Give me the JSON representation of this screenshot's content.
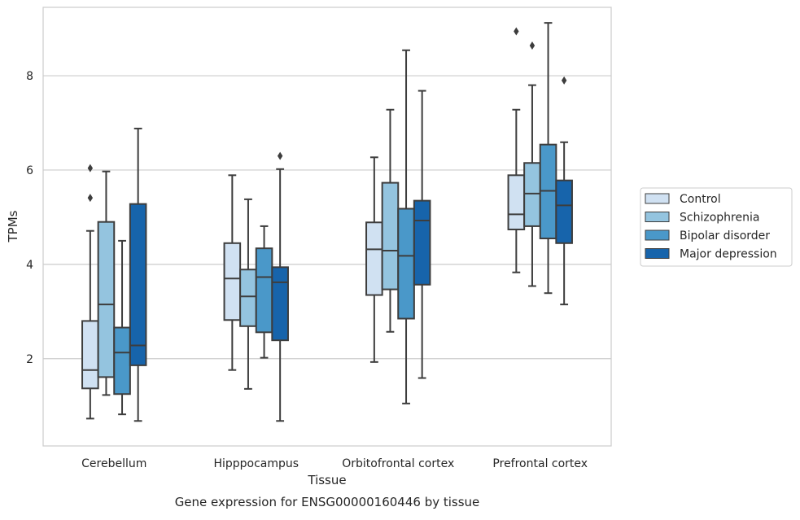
{
  "chart_data": {
    "type": "boxplot",
    "caption": "Gene expression for ENSG00000160446 by tissue",
    "xlabel": "Tissue",
    "ylabel": "TPMs",
    "ylim": [
      0.15,
      9.45
    ],
    "yticks": [
      2,
      4,
      6,
      8
    ],
    "grid": true,
    "legend_position": "right",
    "categories": [
      "Cerebellum",
      "Hipppocampus",
      "Orbitofrontal cortex",
      "Prefrontal cortex"
    ],
    "series": [
      {
        "name": "Control",
        "color": "#d0e1f2",
        "boxes": [
          {
            "whislo": 0.73,
            "q1": 1.37,
            "med": 1.76,
            "q3": 2.8,
            "whishi": 4.71,
            "fliers": [
              5.41,
              6.04
            ]
          },
          {
            "whislo": 1.76,
            "q1": 2.82,
            "med": 3.7,
            "q3": 4.45,
            "whishi": 5.89,
            "fliers": []
          },
          {
            "whislo": 1.93,
            "q1": 3.35,
            "med": 4.32,
            "q3": 4.89,
            "whishi": 6.27,
            "fliers": []
          },
          {
            "whislo": 3.83,
            "q1": 4.74,
            "med": 5.06,
            "q3": 5.89,
            "whishi": 7.28,
            "fliers": [
              8.94
            ]
          }
        ]
      },
      {
        "name": "Schizophrenia",
        "color": "#94c4df",
        "boxes": [
          {
            "whislo": 1.23,
            "q1": 1.61,
            "med": 3.15,
            "q3": 4.9,
            "whishi": 5.97,
            "fliers": []
          },
          {
            "whislo": 1.36,
            "q1": 2.69,
            "med": 3.32,
            "q3": 3.89,
            "whishi": 5.38,
            "fliers": []
          },
          {
            "whislo": 2.57,
            "q1": 3.47,
            "med": 4.29,
            "q3": 5.73,
            "whishi": 7.28,
            "fliers": []
          },
          {
            "whislo": 3.54,
            "q1": 4.81,
            "med": 5.5,
            "q3": 6.15,
            "whishi": 7.8,
            "fliers": [
              8.64
            ]
          }
        ]
      },
      {
        "name": "Bipolar disorder",
        "color": "#4a98c9",
        "boxes": [
          {
            "whislo": 0.82,
            "q1": 1.25,
            "med": 2.13,
            "q3": 2.66,
            "whishi": 4.5,
            "fliers": []
          },
          {
            "whislo": 2.02,
            "q1": 2.56,
            "med": 3.73,
            "q3": 4.34,
            "whishi": 4.81,
            "fliers": []
          },
          {
            "whislo": 1.05,
            "q1": 2.85,
            "med": 4.18,
            "q3": 5.18,
            "whishi": 8.54,
            "fliers": []
          },
          {
            "whislo": 3.39,
            "q1": 4.55,
            "med": 5.56,
            "q3": 6.54,
            "whishi": 9.12,
            "fliers": []
          }
        ]
      },
      {
        "name": "Major depression",
        "color": "#1764ab",
        "boxes": [
          {
            "whislo": 0.68,
            "q1": 1.86,
            "med": 2.28,
            "q3": 5.28,
            "whishi": 6.88,
            "fliers": []
          },
          {
            "whislo": 0.68,
            "q1": 2.39,
            "med": 3.62,
            "q3": 3.94,
            "whishi": 6.02,
            "fliers": [
              6.3
            ]
          },
          {
            "whislo": 1.59,
            "q1": 3.57,
            "med": 4.93,
            "q3": 5.35,
            "whishi": 7.68,
            "fliers": []
          },
          {
            "whislo": 3.15,
            "q1": 4.45,
            "med": 5.25,
            "q3": 5.78,
            "whishi": 6.59,
            "fliers": [
              7.9
            ]
          }
        ]
      }
    ]
  }
}
